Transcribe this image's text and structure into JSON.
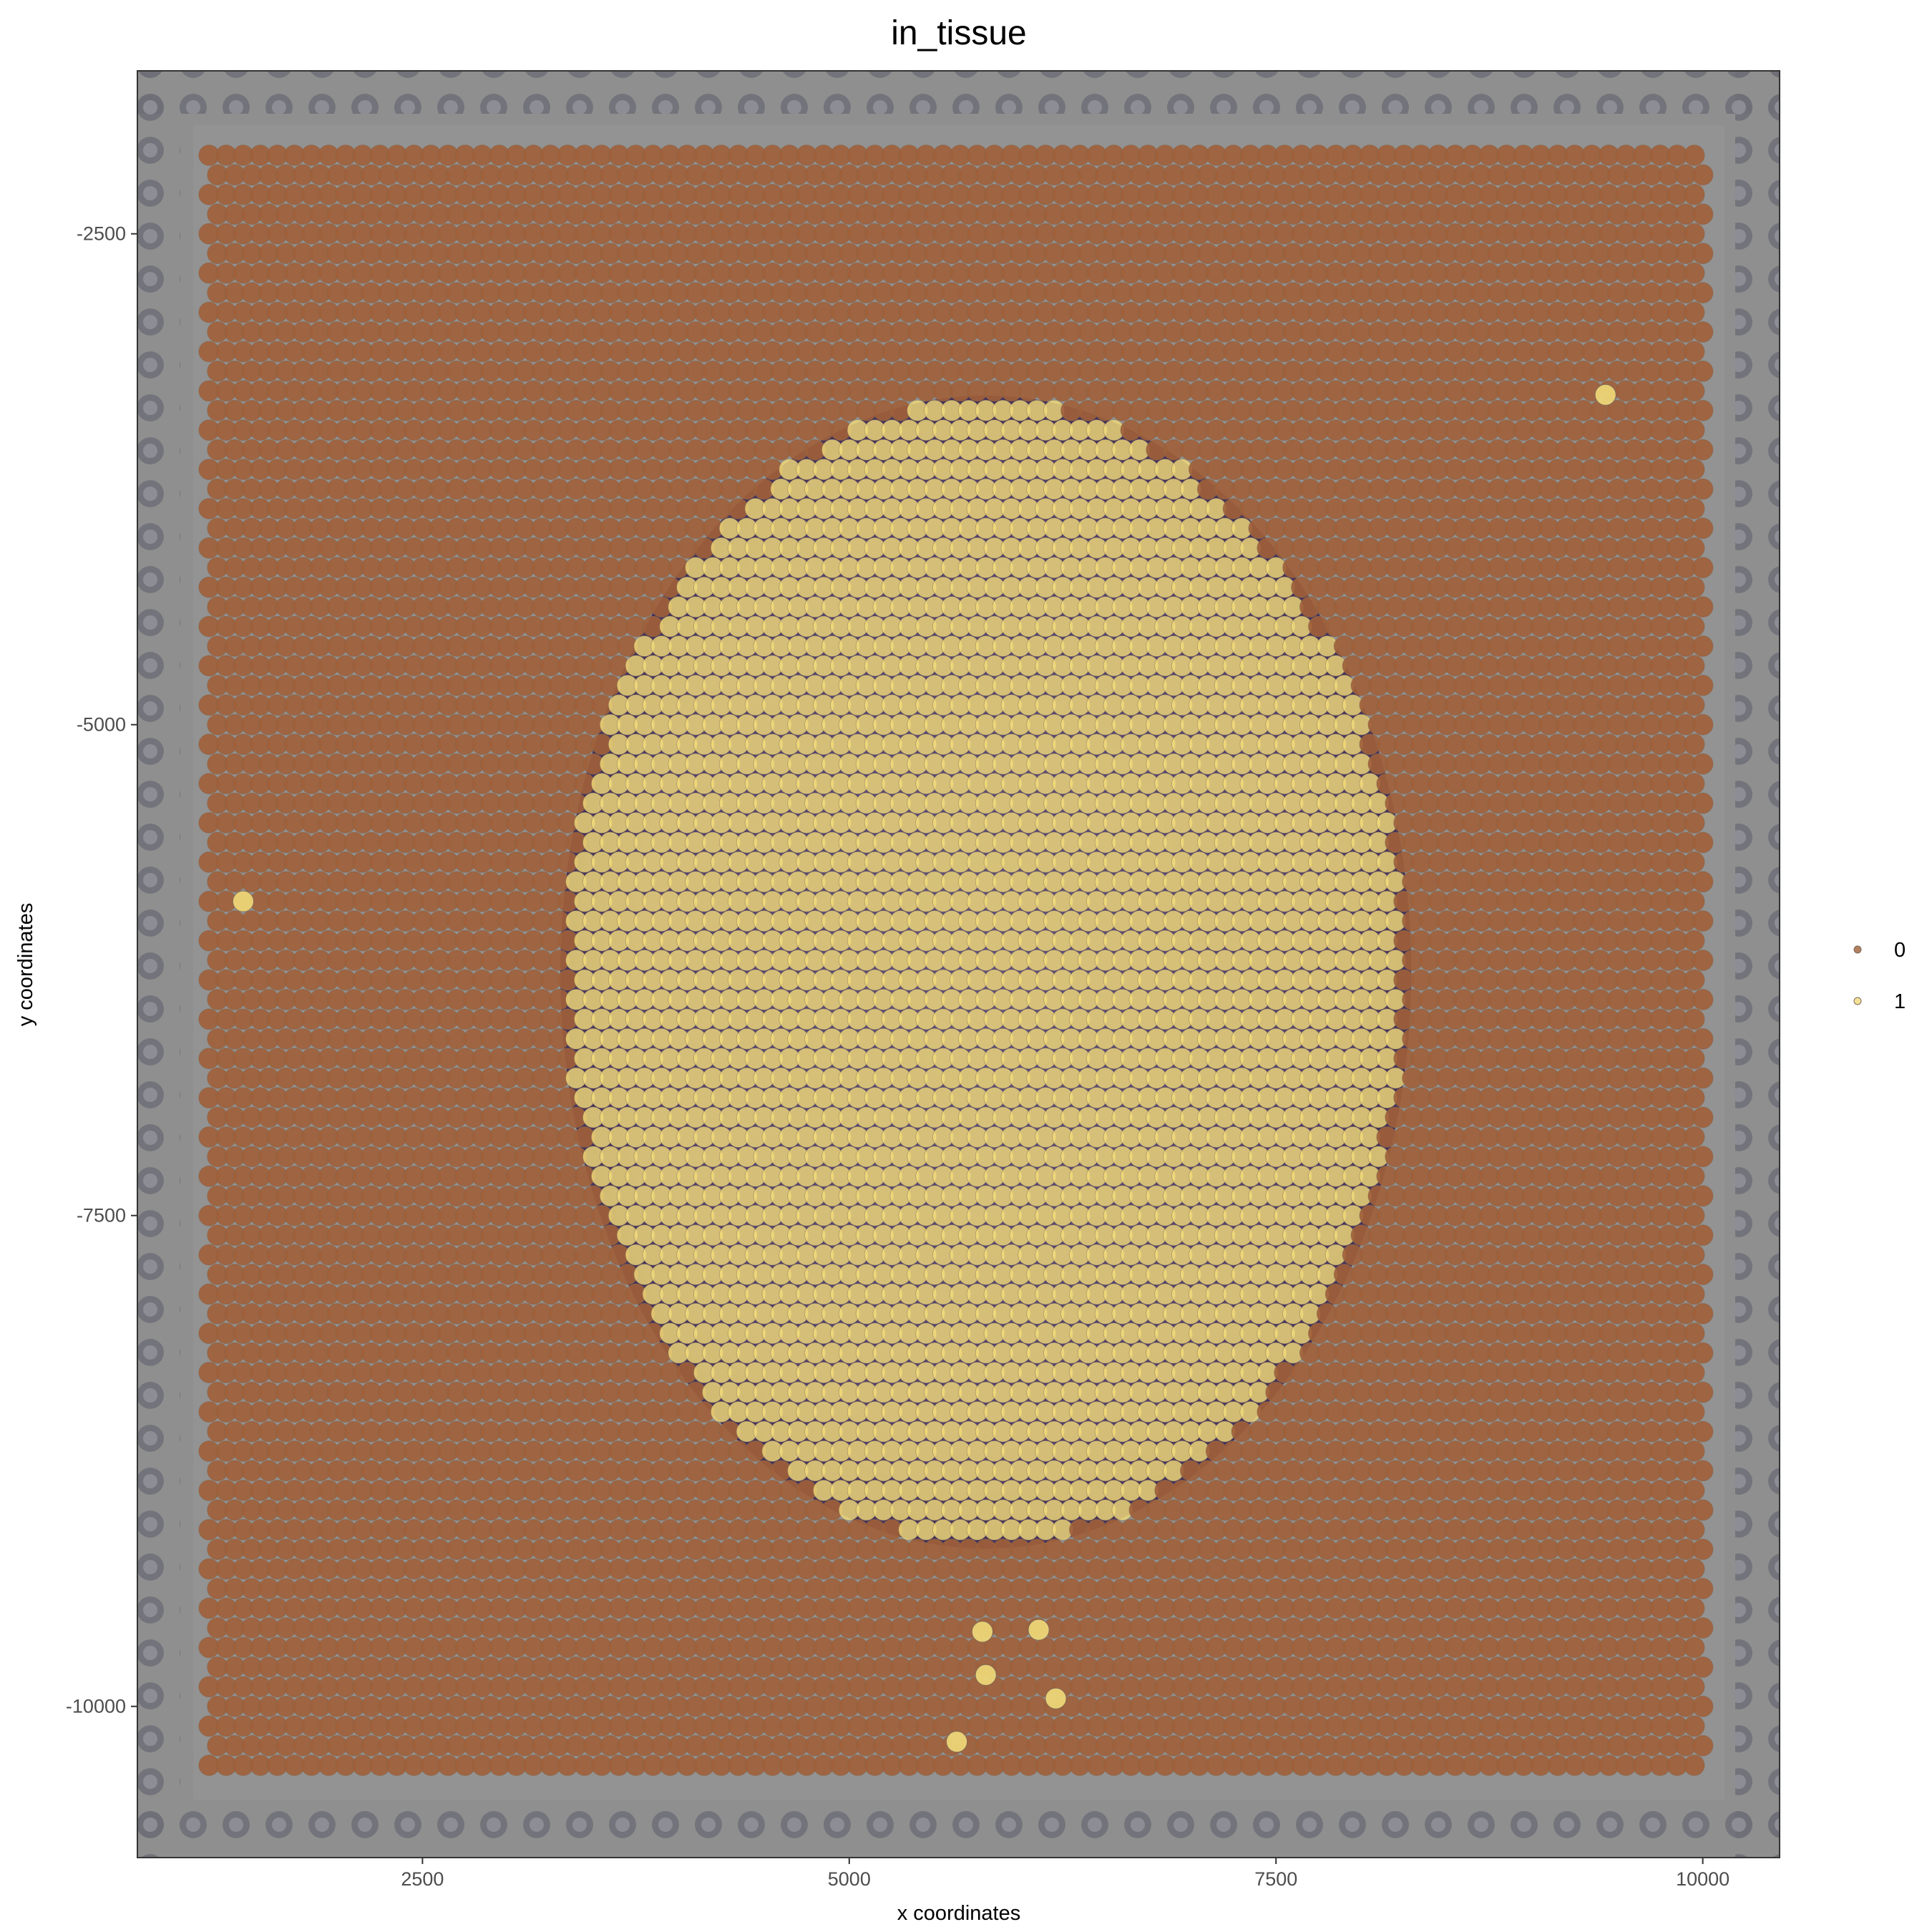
{
  "chart_data": {
    "type": "scatter",
    "title": "in_tissue",
    "xlabel": "x coordinates",
    "ylabel": "y coordinates",
    "xlim": [
      830,
      10450
    ],
    "ylim": [
      -10770,
      -1670
    ],
    "x_ticks": [
      2500,
      5000,
      7500,
      10000
    ],
    "x_tick_labels": [
      "2500",
      "5000",
      "7500",
      "10000"
    ],
    "y_ticks": [
      -2500,
      -5000,
      -7500,
      -10000
    ],
    "y_tick_labels": [
      "-2500",
      "-5000",
      "-7500",
      "-10000"
    ],
    "grid": false,
    "background": "tissue image (Visium capture area, H&E)",
    "legend": {
      "placement": "right",
      "entries": [
        {
          "label": "0",
          "color": "#a0603a"
        },
        {
          "label": "1",
          "color": "#f1da7a"
        }
      ]
    },
    "spot_grid": {
      "x_range": [
        1250,
        10000
      ],
      "y_range": [
        -10350,
        -2100
      ],
      "spacing": 100,
      "hex_offset": true
    },
    "series": [
      {
        "name": "0",
        "color": "#a0603a",
        "description_region": "all spots outside tissue"
      },
      {
        "name": "1",
        "color": "#f1da7a",
        "tissue_region_ellipse": {
          "cx": 5800,
          "cy": -6260,
          "rx": 2450,
          "ry": 2900
        },
        "extra_points": [
          {
            "x": 1450,
            "y": -5900
          },
          {
            "x": 9430,
            "y": -3320
          },
          {
            "x": 5630,
            "y": -10180
          },
          {
            "x": 6210,
            "y": -9960
          },
          {
            "x": 5800,
            "y": -9840
          },
          {
            "x": 5780,
            "y": -9620
          },
          {
            "x": 6110,
            "y": -9610
          }
        ]
      }
    ]
  }
}
